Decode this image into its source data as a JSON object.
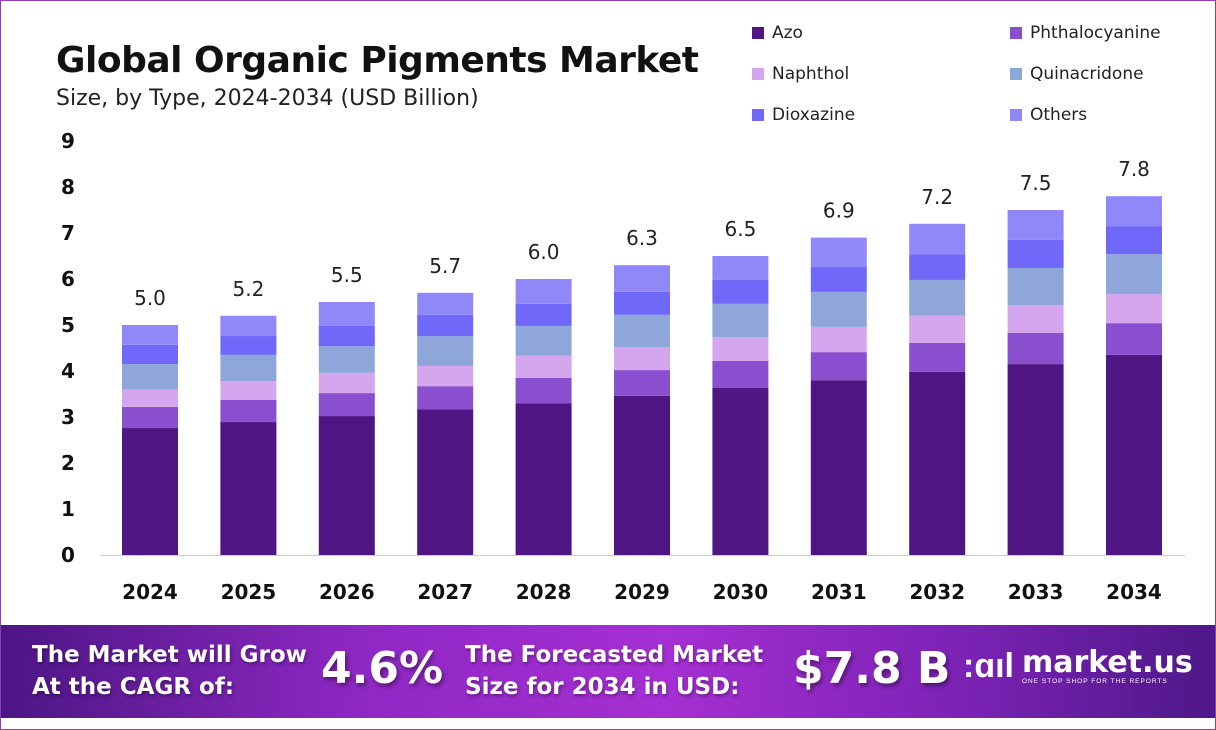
{
  "chart_data": {
    "type": "bar",
    "stacked": true,
    "title": "Global Organic Pigments Market",
    "subtitle": "Size, by Type, 2024-2034 (USD Billion)",
    "xlabel": "",
    "ylabel": "",
    "ylim": [
      0,
      9
    ],
    "yticks": [
      "0",
      "1",
      "2",
      "3",
      "4",
      "5",
      "6",
      "7",
      "8",
      "9"
    ],
    "grid": false,
    "legend_position": "top-right",
    "categories": [
      "2024",
      "2025",
      "2026",
      "2027",
      "2028",
      "2029",
      "2030",
      "2031",
      "2032",
      "2033",
      "2034"
    ],
    "totals": [
      "5.0",
      "5.2",
      "5.5",
      "5.7",
      "6.0",
      "6.3",
      "6.5",
      "6.9",
      "7.2",
      "7.5",
      "7.8"
    ],
    "series": [
      {
        "name": "Azo",
        "color": "#4f1583",
        "values": [
          2.76,
          2.89,
          3.02,
          3.17,
          3.3,
          3.46,
          3.63,
          3.8,
          3.98,
          4.15,
          4.35
        ]
      },
      {
        "name": "Phthalocyanine",
        "color": "#8a4fce",
        "values": [
          0.46,
          0.48,
          0.5,
          0.5,
          0.55,
          0.56,
          0.59,
          0.61,
          0.63,
          0.68,
          0.69
        ]
      },
      {
        "name": "Naphthol",
        "color": "#d4a6ee",
        "values": [
          0.38,
          0.41,
          0.44,
          0.44,
          0.48,
          0.5,
          0.52,
          0.55,
          0.59,
          0.6,
          0.63
        ]
      },
      {
        "name": "Quinacridone",
        "color": "#8ea6da",
        "values": [
          0.55,
          0.57,
          0.58,
          0.65,
          0.65,
          0.7,
          0.72,
          0.76,
          0.78,
          0.81,
          0.87
        ]
      },
      {
        "name": "Dioxazine",
        "color": "#7068f8",
        "values": [
          0.42,
          0.41,
          0.44,
          0.46,
          0.48,
          0.5,
          0.52,
          0.54,
          0.56,
          0.61,
          0.61
        ]
      },
      {
        "name": "Others",
        "color": "#9088f8",
        "values": [
          0.43,
          0.44,
          0.52,
          0.48,
          0.54,
          0.58,
          0.52,
          0.64,
          0.66,
          0.65,
          0.65
        ]
      }
    ]
  },
  "banner": {
    "cagr_label_1": "The Market will Grow",
    "cagr_label_2": "At the CAGR of:",
    "cagr_value": "4.6%",
    "forecast_label_1": "The Forecasted Market",
    "forecast_label_2": "Size for 2034 in USD:",
    "forecast_value": "$7.8 B",
    "logo_name": "market.us",
    "logo_tagline": "ONE STOP SHOP FOR THE REPORTS"
  }
}
